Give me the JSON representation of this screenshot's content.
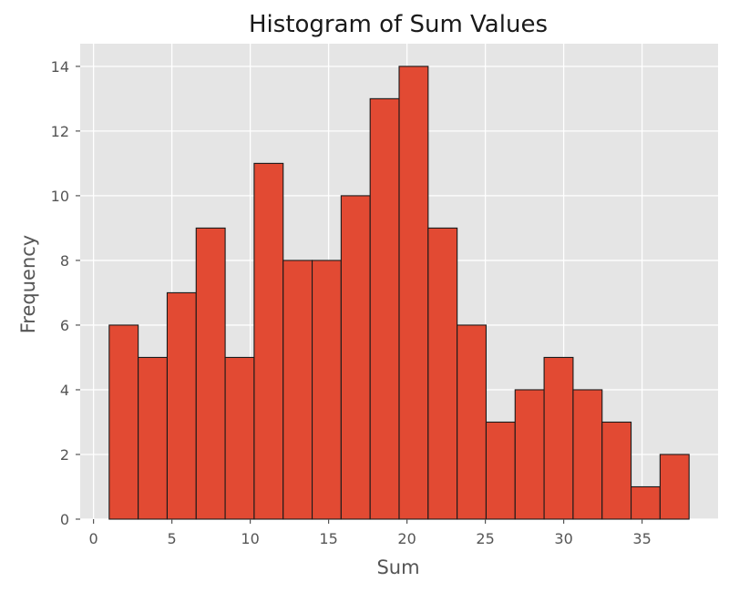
{
  "chart_data": {
    "type": "bar",
    "title": "Histogram of Sum Values",
    "xlabel": "Sum",
    "ylabel": "Frequency",
    "xlim": [
      -0.85,
      39.85
    ],
    "ylim": [
      0,
      14.7
    ],
    "xticks": [
      0,
      5,
      10,
      15,
      20,
      25,
      30,
      35
    ],
    "yticks": [
      0,
      2,
      4,
      6,
      8,
      10,
      12,
      14
    ],
    "bin_edges": [
      1.0,
      2.85,
      4.7,
      6.55,
      8.4,
      10.25,
      12.1,
      13.95,
      15.8,
      17.65,
      19.5,
      21.35,
      23.2,
      25.05,
      26.9,
      28.75,
      30.6,
      32.45,
      34.3,
      36.15,
      38.0
    ],
    "values": [
      6,
      5,
      7,
      9,
      5,
      11,
      8,
      8,
      10,
      13,
      14,
      9,
      6,
      3,
      4,
      5,
      4,
      3,
      1,
      2
    ],
    "grid": true,
    "colors": {
      "bar": "#E24A33",
      "edge": "#1a1a1a",
      "plot_bg": "#E5E5E5",
      "grid": "#FFFFFF"
    }
  }
}
